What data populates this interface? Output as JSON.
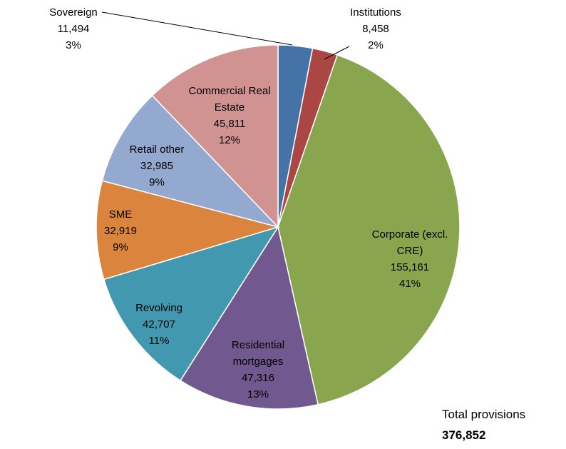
{
  "chart_data": {
    "type": "pie",
    "title": "",
    "slices": [
      {
        "label_lines": [
          "Sovereign"
        ],
        "label": "Sovereign",
        "value": 11494,
        "value_text": "11,494",
        "pct_text": "3%",
        "color": "#4572A7"
      },
      {
        "label_lines": [
          "Institutions"
        ],
        "label": "Institutions",
        "value": 8458,
        "value_text": "8,458",
        "pct_text": "2%",
        "color": "#AA4643"
      },
      {
        "label_lines": [
          "Corporate (excl.",
          "CRE)"
        ],
        "label": "Corporate (excl. CRE)",
        "value": 155161,
        "value_text": "155,161",
        "pct_text": "41%",
        "color": "#89A54E"
      },
      {
        "label_lines": [
          "Residential",
          "mortgages"
        ],
        "label": "Residential mortgages",
        "value": 47316,
        "value_text": "47,316",
        "pct_text": "13%",
        "color": "#71588F"
      },
      {
        "label_lines": [
          "Revolving"
        ],
        "label": "Revolving",
        "value": 42707,
        "value_text": "42,707",
        "pct_text": "11%",
        "color": "#4198AF"
      },
      {
        "label_lines": [
          "SME"
        ],
        "label": "SME",
        "value": 32919,
        "value_text": "32,919",
        "pct_text": "9%",
        "color": "#DB843D"
      },
      {
        "label_lines": [
          "Retail other"
        ],
        "label": "Retail other",
        "value": 32985,
        "value_text": "32,985",
        "pct_text": "9%",
        "color": "#93A9CF"
      },
      {
        "label_lines": [
          "Commercial Real",
          "Estate"
        ],
        "label": "Commercial Real Estate",
        "value": 45811,
        "value_text": "45,811",
        "pct_text": "12%",
        "color": "#D19392"
      }
    ],
    "start_angle": "12 o'clock",
    "direction": "clockwise"
  },
  "total": {
    "title": "Total provisions",
    "value_text": "376,852"
  }
}
